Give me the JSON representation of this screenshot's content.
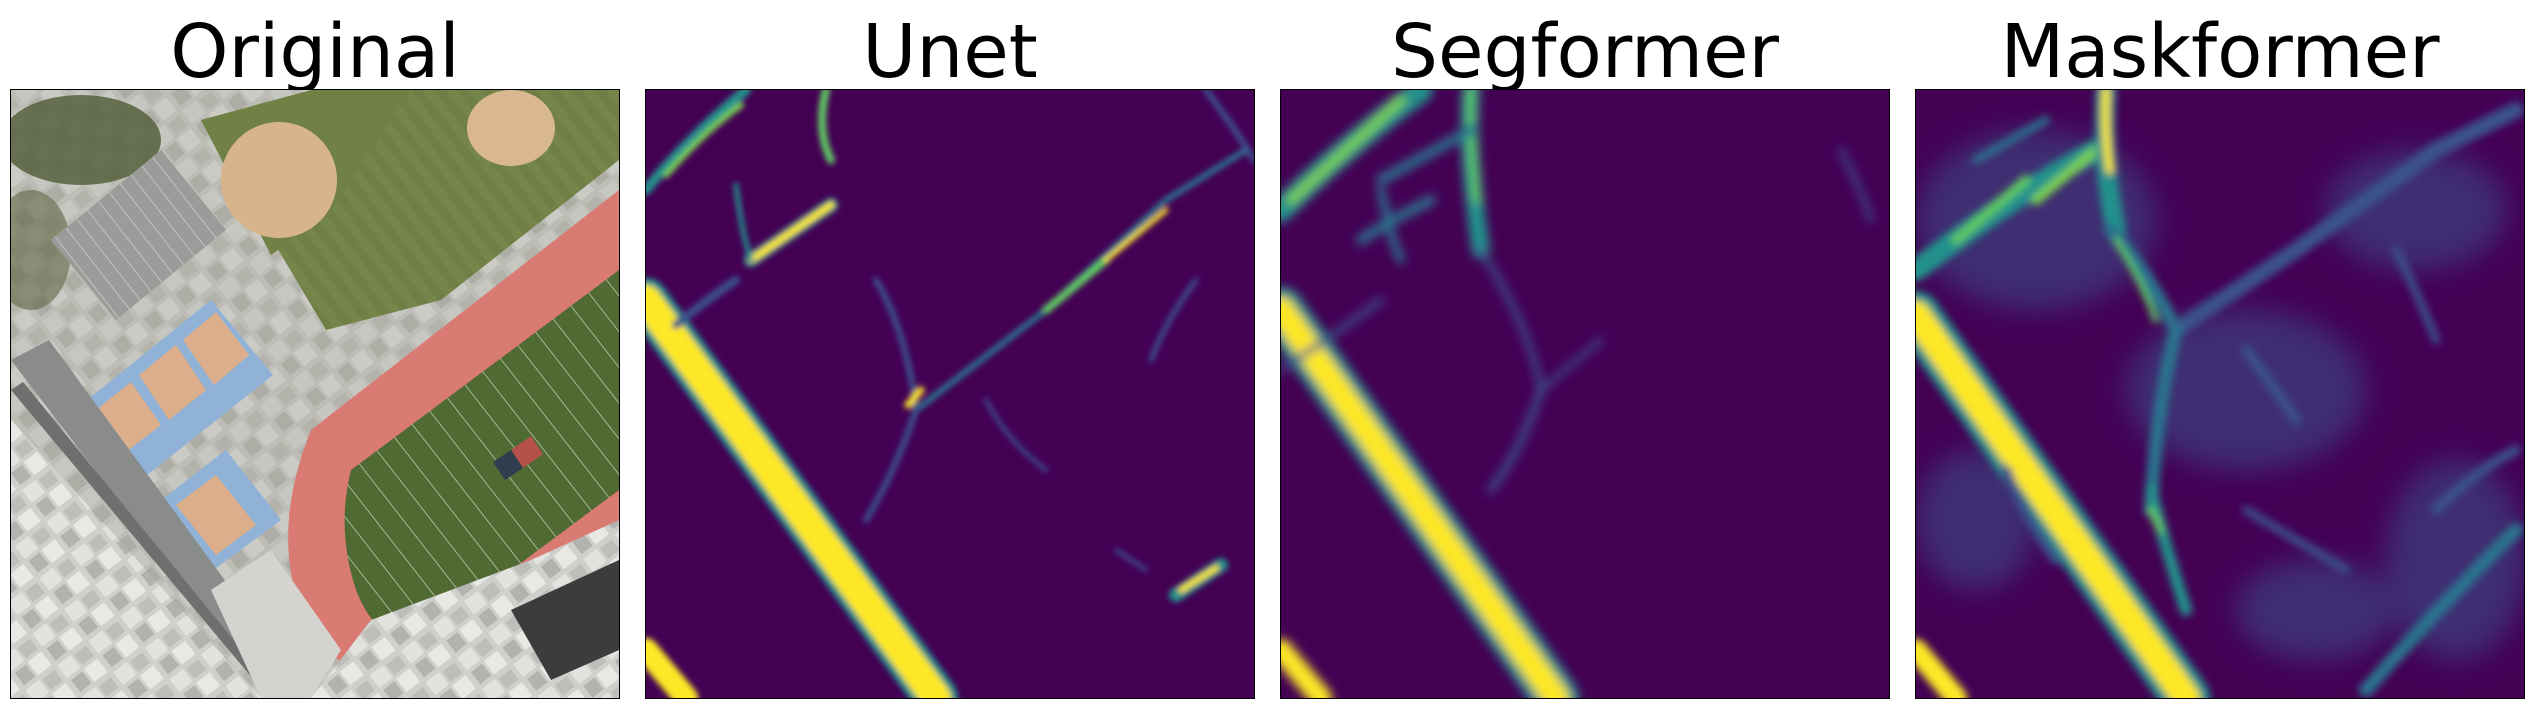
{
  "figure": {
    "panels": [
      {
        "title": "Original",
        "kind": "aerial-photo"
      },
      {
        "title": "Unet",
        "kind": "heatmap"
      },
      {
        "title": "Segformer",
        "kind": "heatmap"
      },
      {
        "title": "Maskformer",
        "kind": "heatmap"
      }
    ],
    "colormap": {
      "name": "viridis",
      "low": "#440154",
      "mid": "#21918c",
      "high": "#fde725"
    },
    "photo_colors": {
      "track": "#d97a73",
      "field": "#4f6b33",
      "grass": "#6f7f45",
      "dirt": "#d7b48a",
      "court_blue": "#8fb2d6",
      "court_tan": "#dcae8b",
      "roof": "#d8d8d6",
      "street": "#8a8c8c",
      "trees": "#56603c"
    }
  }
}
